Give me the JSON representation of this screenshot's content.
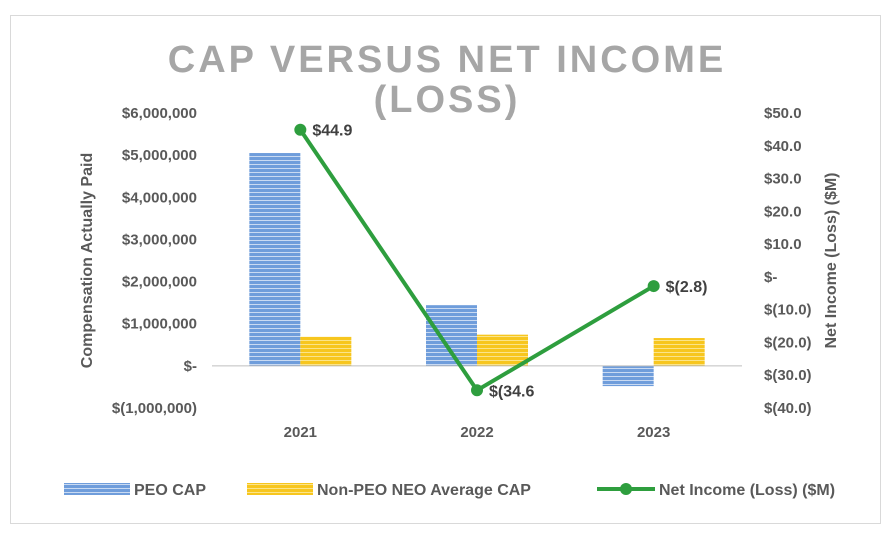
{
  "chart_data": {
    "type": "bar+line",
    "title_lines": [
      "CAP VERSUS NET INCOME",
      "(LOSS)"
    ],
    "categories": [
      "2021",
      "2022",
      "2023"
    ],
    "ylabel_left": "Compensation Actually Paid",
    "ylabel_right": "Net Income (Loss) ($M)",
    "ylim_left": [
      -1000000,
      6000000
    ],
    "ylim_right": [
      -40,
      50
    ],
    "left_ticks": [
      {
        "value": 6000000,
        "label": "$6,000,000"
      },
      {
        "value": 5000000,
        "label": "$5,000,000"
      },
      {
        "value": 4000000,
        "label": "$4,000,000"
      },
      {
        "value": 3000000,
        "label": "$3,000,000"
      },
      {
        "value": 2000000,
        "label": "$2,000,000"
      },
      {
        "value": 1000000,
        "label": "$1,000,000"
      },
      {
        "value": 0,
        "label": "$-"
      },
      {
        "value": -1000000,
        "label": "$(1,000,000)"
      }
    ],
    "right_ticks": [
      {
        "value": 50,
        "label": "$50.0"
      },
      {
        "value": 40,
        "label": "$40.0"
      },
      {
        "value": 30,
        "label": "$30.0"
      },
      {
        "value": 20,
        "label": "$20.0"
      },
      {
        "value": 10,
        "label": "$10.0"
      },
      {
        "value": 0,
        "label": "$-"
      },
      {
        "value": -10,
        "label": "$(10.0)"
      },
      {
        "value": -20,
        "label": "$(20.0)"
      },
      {
        "value": -30,
        "label": "$(30.0)"
      },
      {
        "value": -40,
        "label": "$(40.0)"
      }
    ],
    "series": [
      {
        "name": "PEO CAP",
        "type": "bar",
        "axis": "left",
        "color": "#5b8fd4",
        "values": [
          5050000,
          1440000,
          -480000
        ]
      },
      {
        "name": "Non-PEO NEO Average CAP",
        "type": "bar",
        "axis": "left",
        "color": "#f5c518",
        "values": [
          690000,
          740000,
          660000
        ]
      },
      {
        "name": "Net Income (Loss) ($M)",
        "type": "line",
        "axis": "right",
        "color": "#2e9e3e",
        "values": [
          44.9,
          -34.6,
          -2.8
        ],
        "labels": [
          "$44.9",
          "$(34.6",
          "$(2.8)"
        ]
      }
    ]
  }
}
